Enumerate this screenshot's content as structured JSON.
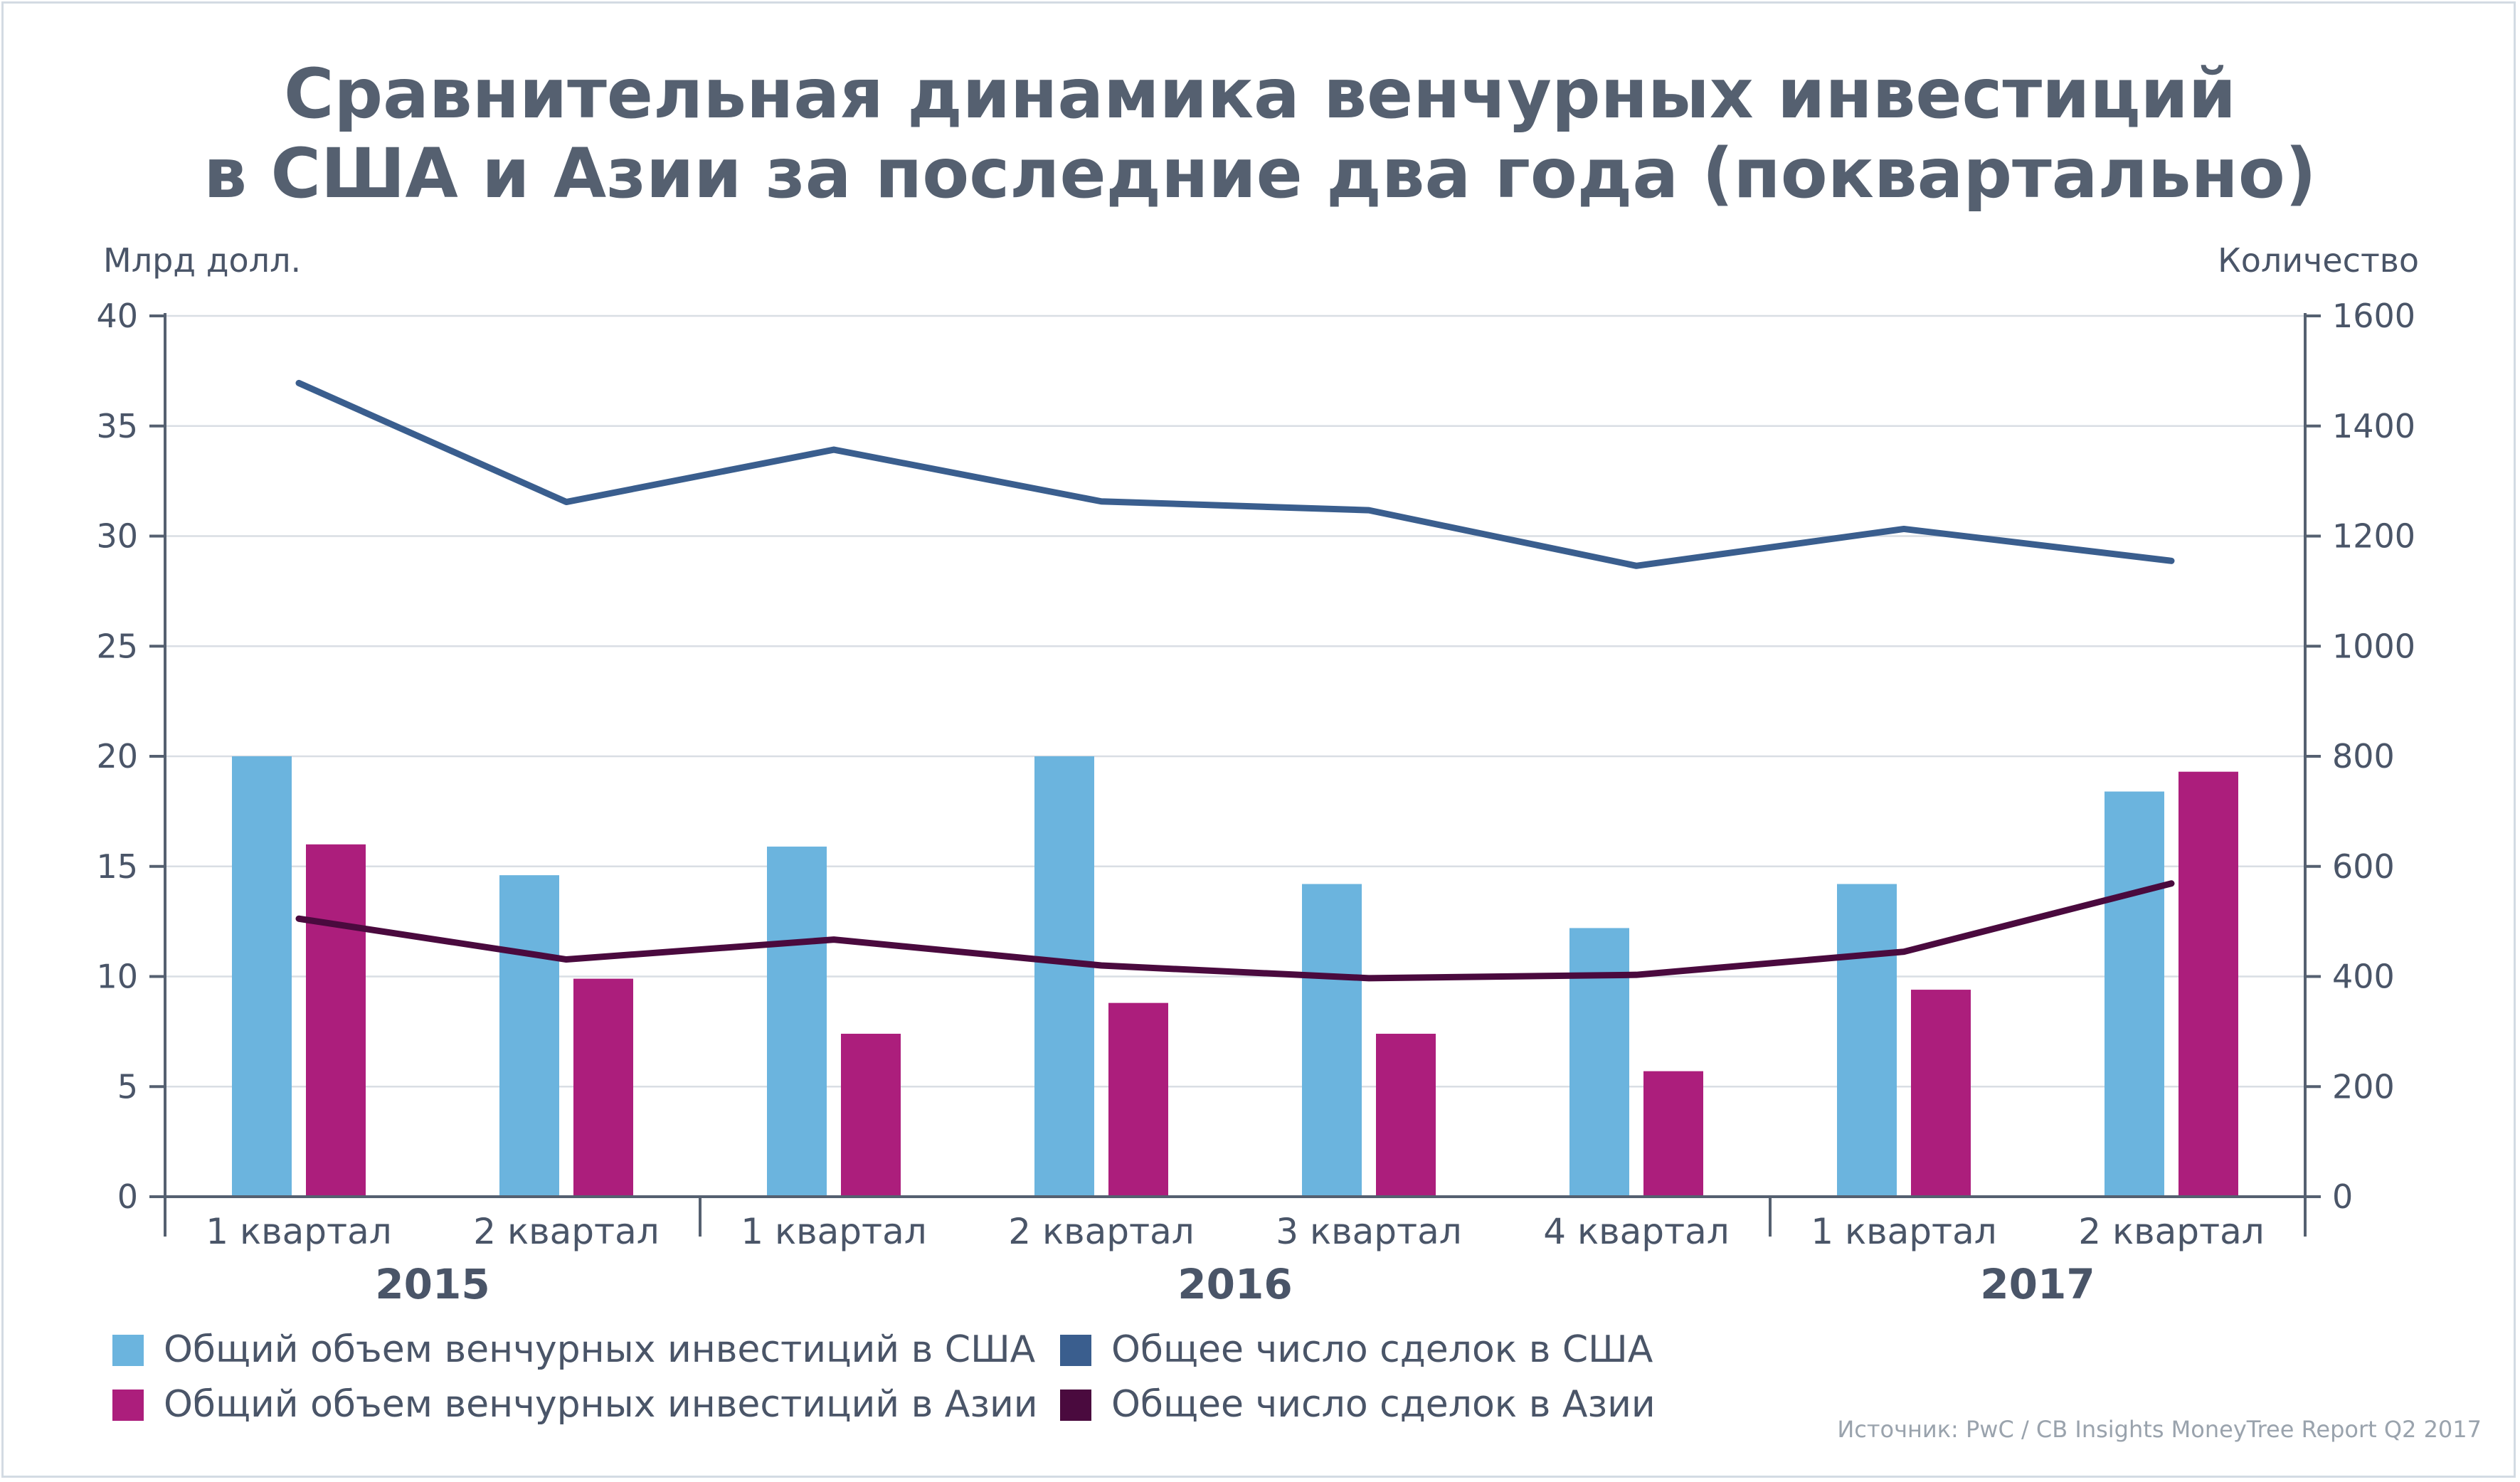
{
  "chart_data": {
    "type": "bar",
    "title_lines": [
      "Сравнительная динамика венчурных инвестиций",
      "в США и Азии за последние два года (поквартально)"
    ],
    "ylabel": "Млрд долл.",
    "y2label": "Количество",
    "ylim": [
      0,
      40
    ],
    "y2lim": [
      0,
      1600
    ],
    "yticks": [
      "0",
      "5",
      "10",
      "15",
      "20",
      "25",
      "30",
      "35",
      "40"
    ],
    "y2ticks": [
      "0",
      "200",
      "400",
      "600",
      "800",
      "1000",
      "1200",
      "1400",
      "1600"
    ],
    "categories": [
      "1 квартал",
      "2 квартал",
      "1 квартал",
      "2 квартал",
      "3 квартал",
      "4 квартал",
      "1 квартал",
      "2 квартал"
    ],
    "years": [
      "2015",
      "2016",
      "2017"
    ],
    "grid": true,
    "legend_position": "bottom",
    "series": [
      {
        "name": "Общий объем венчурных инвестиций в США",
        "kind": "bar",
        "axis": "left",
        "color": "#6bb4de",
        "values": [
          20.0,
          14.6,
          15.9,
          20.0,
          14.2,
          12.2,
          14.2,
          18.4
        ]
      },
      {
        "name": "Общий объем венчурных инвестиций в Азии",
        "kind": "bar",
        "axis": "left",
        "color": "#ac1e7c",
        "values": [
          16.0,
          9.9,
          7.4,
          8.8,
          7.4,
          5.7,
          9.4,
          19.3
        ]
      },
      {
        "name": "Общее число сделок в США",
        "kind": "line",
        "axis": "right",
        "color": "#3a5e8e",
        "values": [
          1478,
          1262,
          1357,
          1263,
          1247,
          1146,
          1213,
          1155
        ]
      },
      {
        "name": "Общее число сделок в Азии",
        "kind": "line",
        "axis": "right",
        "color": "#4a0a3e",
        "values": [
          505,
          431,
          467,
          420,
          397,
          403,
          445,
          569
        ]
      }
    ],
    "source": "Источник: PwC / CB Insights MoneyTree Report Q2 2017"
  }
}
